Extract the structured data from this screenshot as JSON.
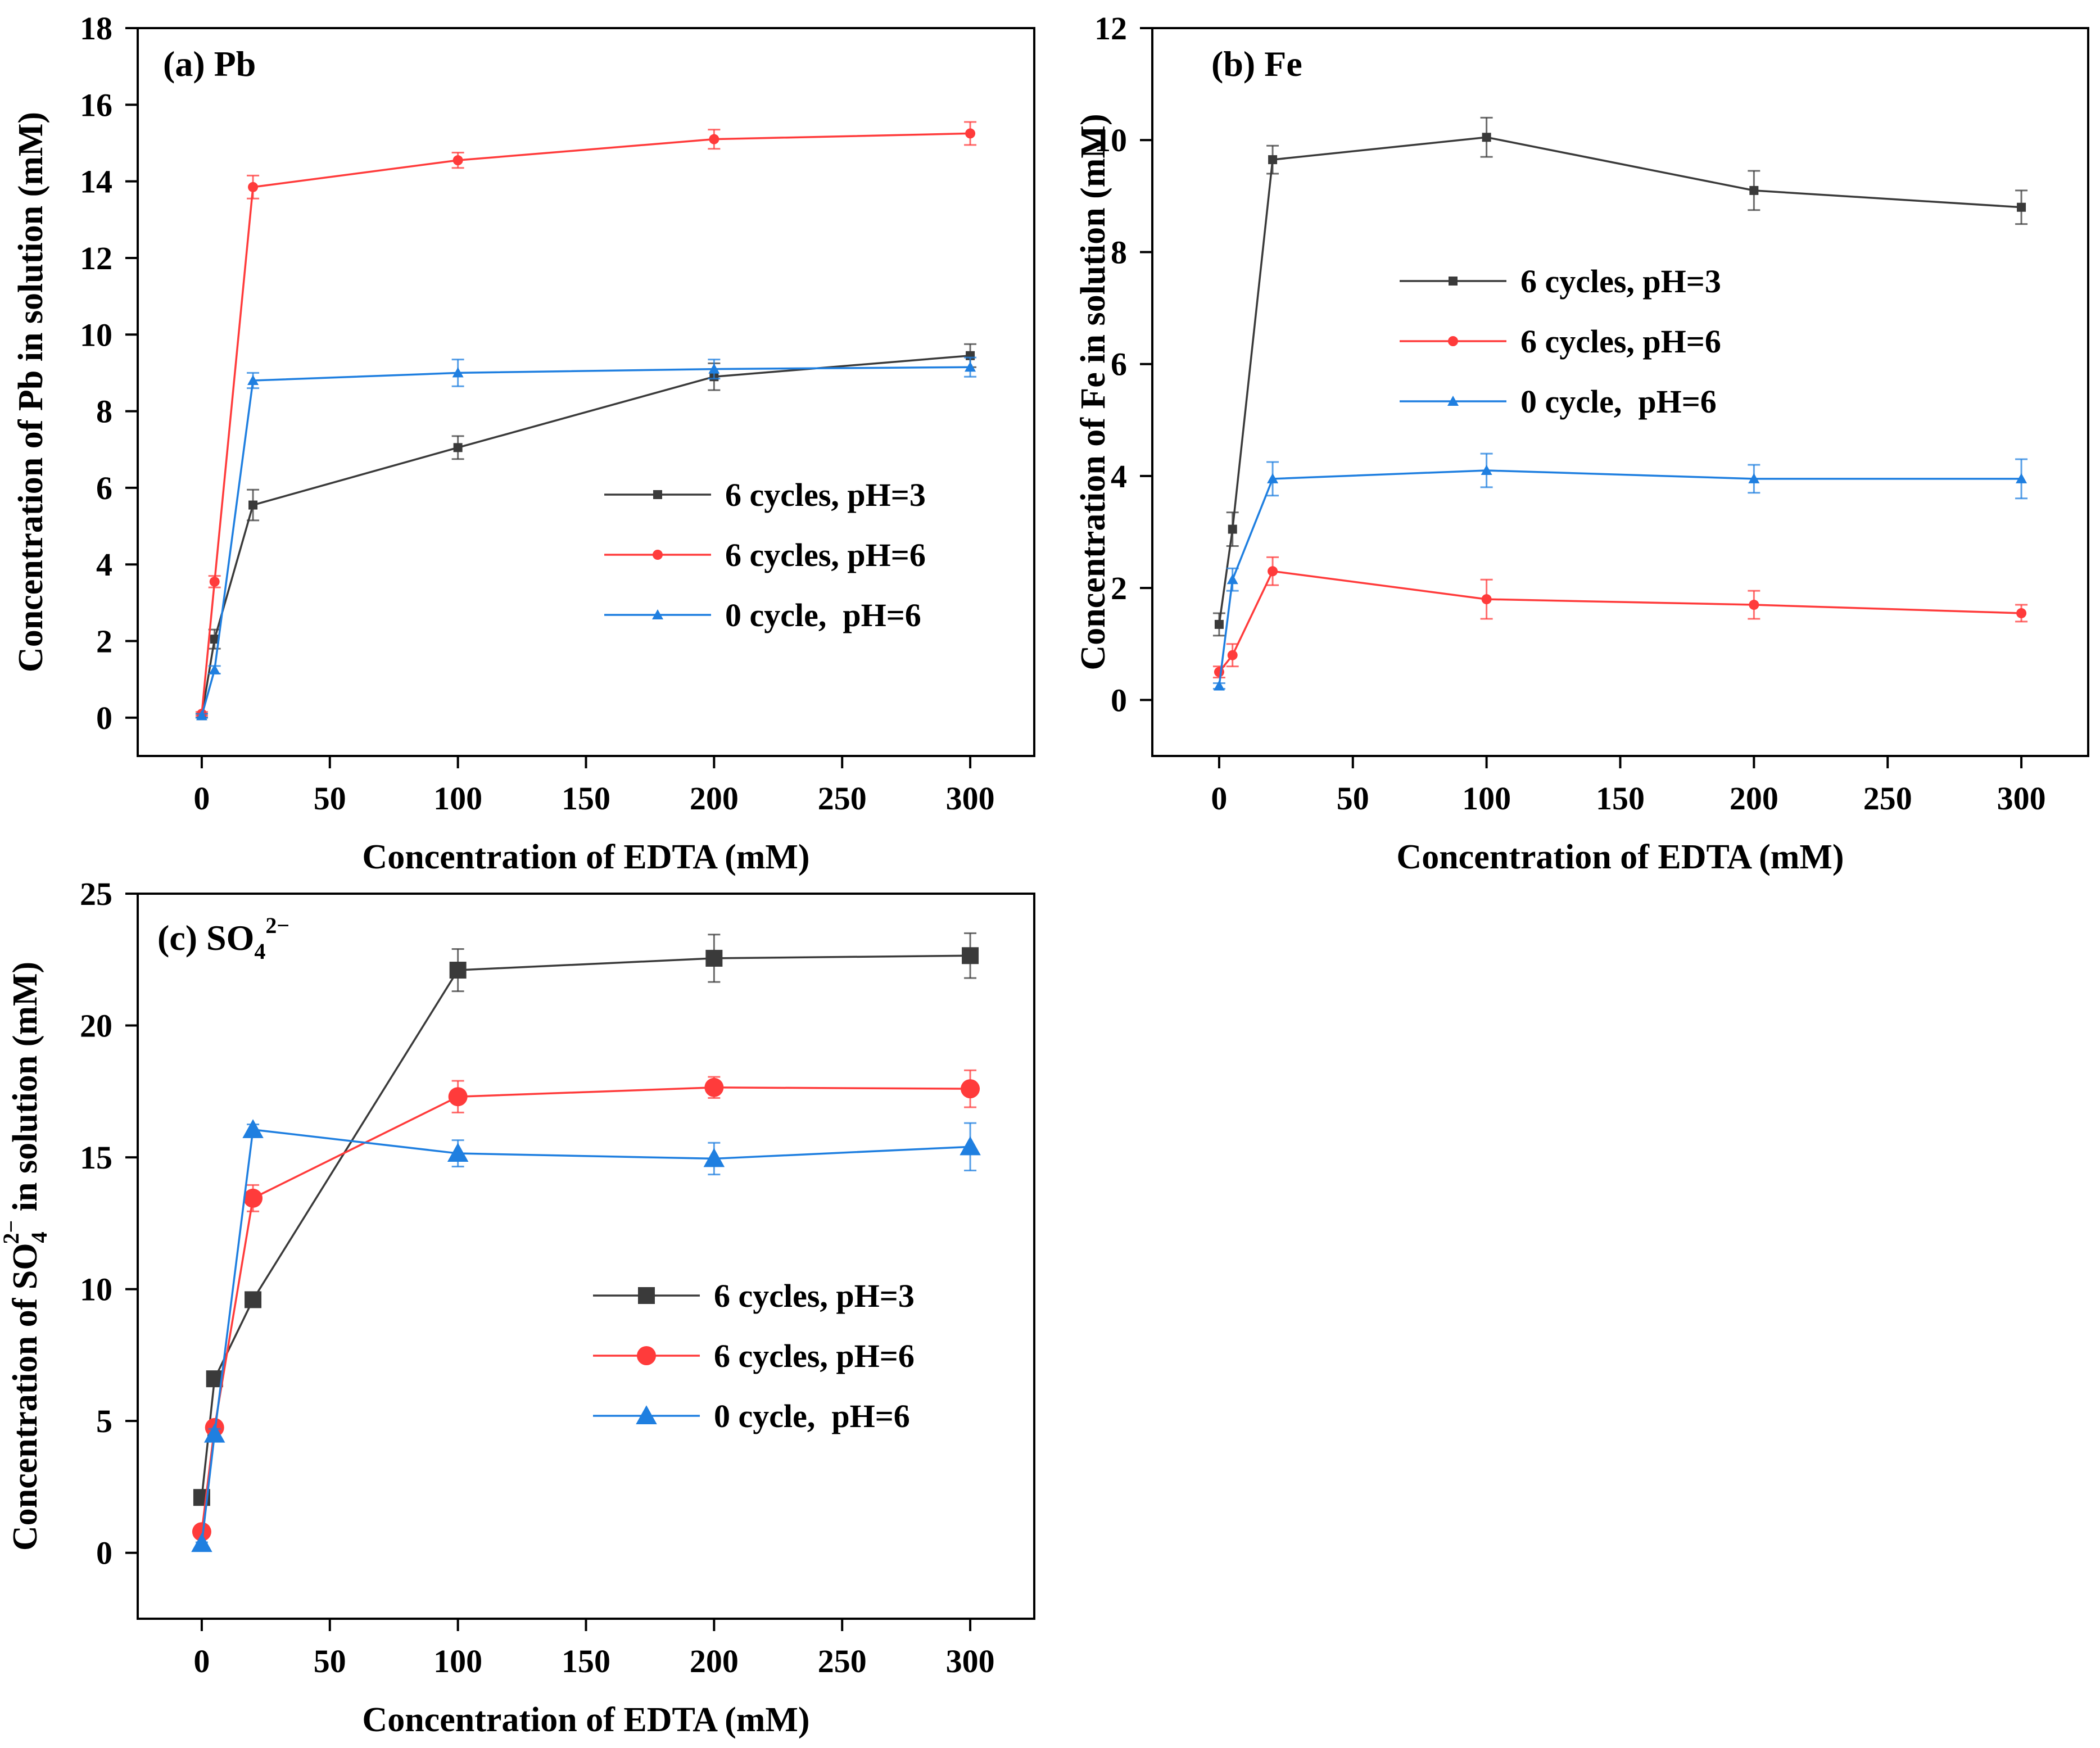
{
  "chart_data": [
    {
      "type": "line",
      "panel_label": "(a)",
      "species": "Pb",
      "xlabel": "Concentration of EDTA (mM)",
      "ylabel": "Concentration of Pb in solution (mM)",
      "xlim": [
        -25,
        325
      ],
      "ylim": [
        -1,
        18
      ],
      "xticks": [
        0,
        50,
        100,
        150,
        200,
        250,
        300
      ],
      "yticks": [
        0,
        2,
        4,
        6,
        8,
        10,
        12,
        14,
        16,
        18
      ],
      "legend_position": "center-right",
      "x": [
        0,
        5,
        20,
        100,
        200,
        300
      ],
      "series": [
        {
          "name": "6 cycles, pH=3",
          "color": "#3a3a3a",
          "marker": "square",
          "values": [
            0.05,
            2.05,
            5.55,
            7.05,
            8.9,
            9.45
          ],
          "errors": [
            0.05,
            0.25,
            0.4,
            0.3,
            0.35,
            0.3
          ]
        },
        {
          "name": "6 cycles, pH=6",
          "color": "#ff3b3b",
          "marker": "circle",
          "values": [
            0.1,
            3.55,
            13.85,
            14.55,
            15.1,
            15.25
          ],
          "errors": [
            0.05,
            0.15,
            0.3,
            0.2,
            0.25,
            0.3
          ]
        },
        {
          "name": "0 cycle,  pH=6",
          "color": "#1f7fe0",
          "marker": "triangle",
          "values": [
            0.05,
            1.25,
            8.8,
            9.0,
            9.1,
            9.15
          ],
          "errors": [
            0.05,
            0.1,
            0.2,
            0.35,
            0.25,
            0.25
          ]
        }
      ]
    },
    {
      "type": "line",
      "panel_label": "(b)",
      "species": "Fe",
      "xlabel": "Concentration of EDTA (mM)",
      "ylabel": "Concentration of Fe in solution (mM)",
      "xlim": [
        -25,
        325
      ],
      "ylim": [
        -1,
        12
      ],
      "xticks": [
        0,
        50,
        100,
        150,
        200,
        250,
        300
      ],
      "yticks": [
        0,
        2,
        4,
        6,
        8,
        10,
        12
      ],
      "legend_position": "center",
      "x": [
        0,
        5,
        20,
        100,
        200,
        300
      ],
      "series": [
        {
          "name": "6 cycles, pH=3",
          "color": "#3a3a3a",
          "marker": "square",
          "values": [
            1.35,
            3.05,
            9.65,
            10.05,
            9.1,
            8.8
          ],
          "errors": [
            0.2,
            0.3,
            0.25,
            0.35,
            0.35,
            0.3
          ]
        },
        {
          "name": "6 cycles, pH=6",
          "color": "#ff3b3b",
          "marker": "circle",
          "values": [
            0.5,
            0.8,
            2.3,
            1.8,
            1.7,
            1.55
          ],
          "errors": [
            0.1,
            0.2,
            0.25,
            0.35,
            0.25,
            0.15
          ]
        },
        {
          "name": "0 cycle,  pH=6",
          "color": "#1f7fe0",
          "marker": "triangle",
          "values": [
            0.25,
            2.15,
            3.95,
            4.1,
            3.95,
            3.95
          ],
          "errors": [
            0.05,
            0.2,
            0.3,
            0.3,
            0.25,
            0.35
          ]
        }
      ]
    },
    {
      "type": "line",
      "panel_label": "(c)",
      "species": "SO",
      "species_sub": "4",
      "species_sup": "2−",
      "xlabel": "Concentration of EDTA (mM)",
      "ylabel_pre": "Concentration of SO",
      "ylabel_sub": "4",
      "ylabel_sup": "2−",
      "ylabel_post": " in solution (mM)",
      "xlim": [
        -25,
        325
      ],
      "ylim": [
        -2.5,
        25
      ],
      "xticks": [
        0,
        50,
        100,
        150,
        200,
        250,
        300
      ],
      "yticks": [
        0,
        5,
        10,
        15,
        20,
        25
      ],
      "legend_position": "center-right",
      "x": [
        0,
        5,
        20,
        100,
        200,
        300
      ],
      "series": [
        {
          "name": "6 cycles, pH=3",
          "color": "#3a3a3a",
          "marker": "square",
          "values": [
            2.1,
            6.6,
            9.6,
            22.1,
            22.55,
            22.65
          ],
          "errors": [
            0.2,
            0.2,
            0.25,
            0.8,
            0.9,
            0.85
          ]
        },
        {
          "name": "6 cycles, pH=6",
          "color": "#ff3b3b",
          "marker": "circle",
          "values": [
            0.8,
            4.75,
            13.45,
            17.3,
            17.65,
            17.6
          ],
          "errors": [
            0.1,
            0.2,
            0.5,
            0.6,
            0.4,
            0.7
          ]
        },
        {
          "name": "0 cycle,  pH=6",
          "color": "#1f7fe0",
          "marker": "triangle",
          "values": [
            0.35,
            4.5,
            16.05,
            15.15,
            14.95,
            15.4
          ],
          "errors": [
            0.05,
            0.2,
            0.2,
            0.5,
            0.6,
            0.9
          ]
        }
      ]
    }
  ]
}
